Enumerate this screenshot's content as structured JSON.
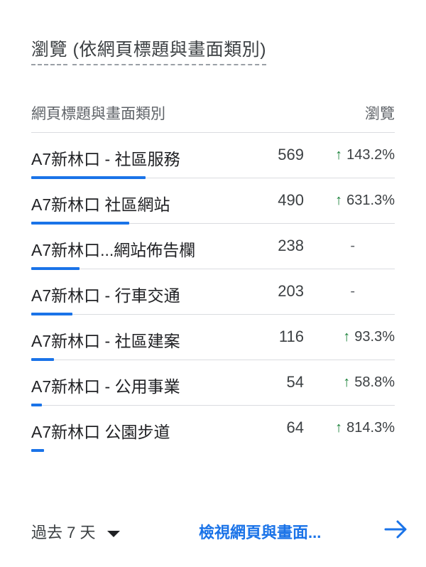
{
  "card": {
    "title_part1": "瀏覽",
    "title_part2": "(依網頁標題與畫面類別)"
  },
  "table": {
    "col_name": "網頁標題與畫面類別",
    "col_views": "瀏覽",
    "rows": [
      {
        "name": "A7新林口 - 社區服務",
        "views": "569",
        "change": "143.2%",
        "change_dir": "up",
        "bar_fraction": 1.0
      },
      {
        "name": "A7新林口 社區網站",
        "views": "490",
        "change": "631.3%",
        "change_dir": "up",
        "bar_fraction": 0.86
      },
      {
        "name": "A7新林口...網站佈告欄",
        "views": "238",
        "change": "-",
        "change_dir": "none",
        "bar_fraction": 0.42
      },
      {
        "name": "A7新林口 - 行車交通",
        "views": "203",
        "change": "-",
        "change_dir": "none",
        "bar_fraction": 0.36
      },
      {
        "name": "A7新林口 - 社區建案",
        "views": "116",
        "change": "93.3%",
        "change_dir": "up",
        "bar_fraction": 0.2
      },
      {
        "name": "A7新林口 - 公用事業",
        "views": "54",
        "change": "58.8%",
        "change_dir": "up",
        "bar_fraction": 0.095
      },
      {
        "name": "A7新林口 公園步道",
        "views": "64",
        "change": "814.3%",
        "change_dir": "up",
        "bar_fraction": 0.11
      }
    ]
  },
  "footer": {
    "date_range": "過去 7 天",
    "link_label": "檢視網頁與畫面..."
  },
  "colors": {
    "accent": "#1a73e8",
    "positive": "#188038"
  },
  "icons": {
    "up": "arrow-up-icon",
    "dropdown": "caret-down-icon",
    "next": "arrow-right-icon"
  }
}
